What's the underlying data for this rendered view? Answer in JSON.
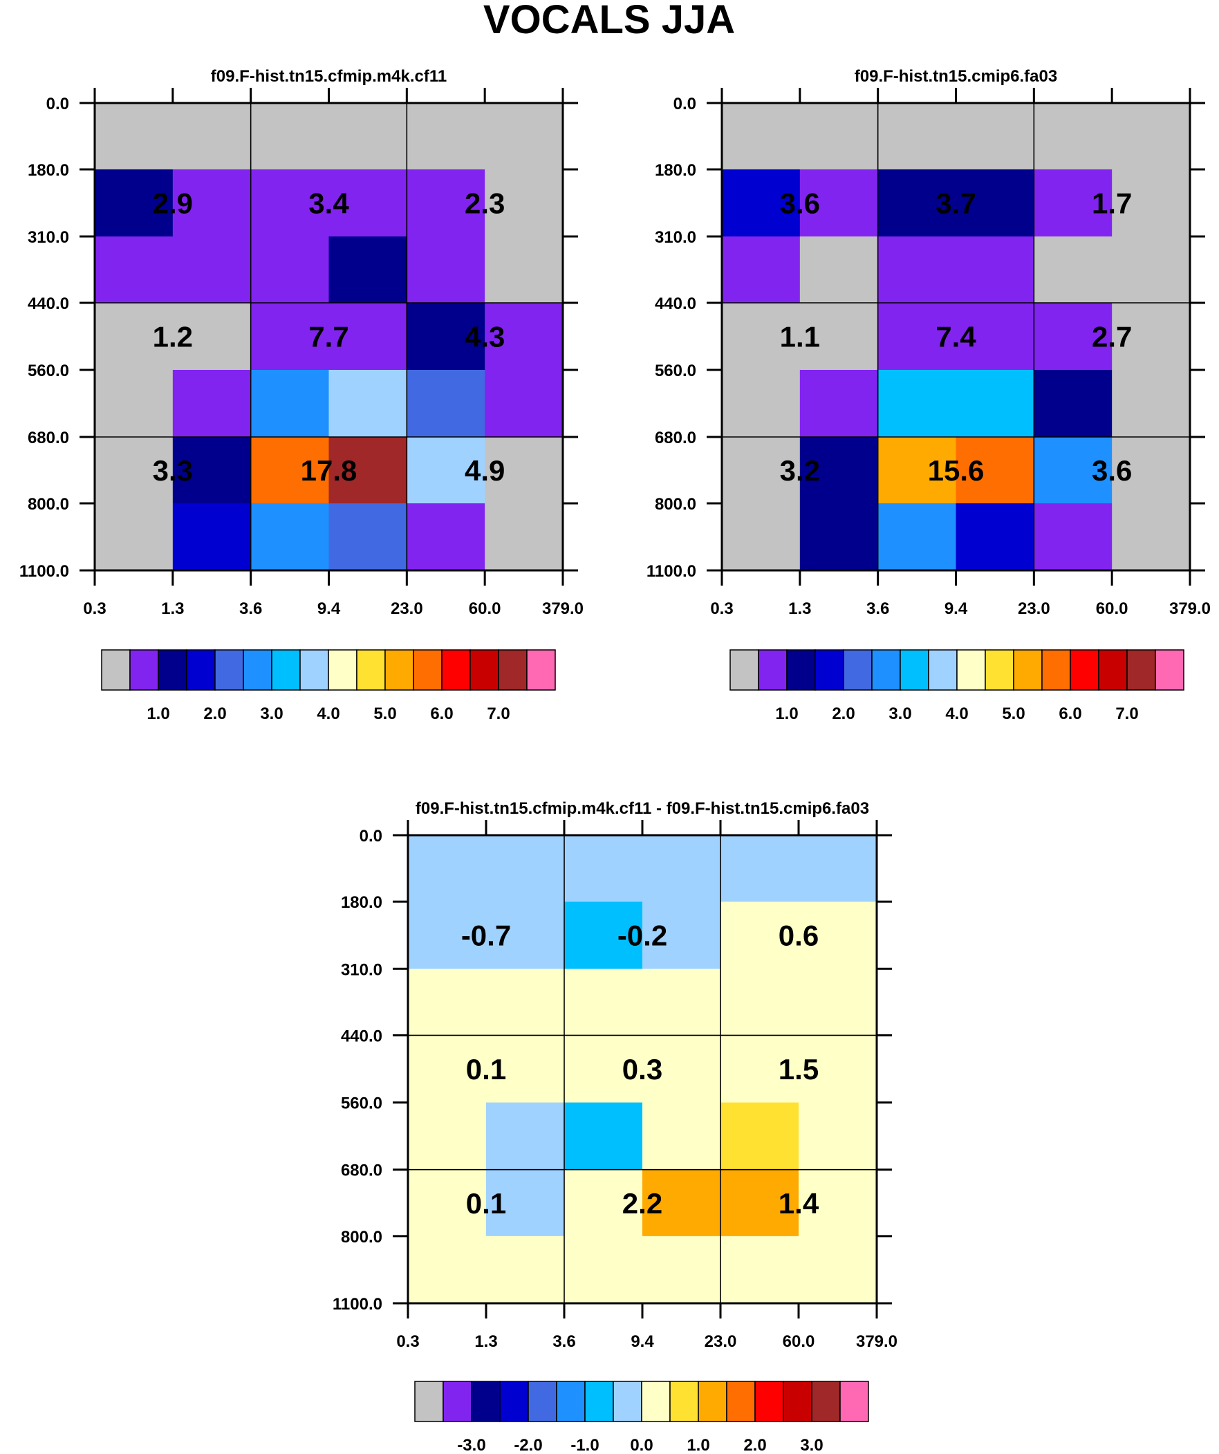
{
  "figure_title": "VOCALS JJA",
  "palette": {
    "colors": [
      "#c3c3c3",
      "#8224f0",
      "#00008c",
      "#0000d0",
      "#4169e1",
      "#1e90ff",
      "#00bfff",
      "#a0d2ff",
      "#ffffc8",
      "#ffe132",
      "#ffaa00",
      "#ff6e00",
      "#ff0000",
      "#c80000",
      "#a02828",
      "#ff69b4"
    ]
  },
  "chart_data": [
    {
      "type": "heatmap",
      "title": "f09.F-hist.tn15.cfmip.m4k.cf11",
      "x_tick_labels": [
        "0.3",
        "1.3",
        "3.6",
        "9.4",
        "23.0",
        "60.0",
        "379.0"
      ],
      "y_tick_labels": [
        "0.0",
        "180.0",
        "310.0",
        "440.0",
        "560.0",
        "680.0",
        "800.0",
        "1100.0"
      ],
      "grid_cells_color_index": [
        [
          0,
          0,
          0,
          0,
          0,
          0
        ],
        [
          2,
          1,
          1,
          1,
          1,
          0
        ],
        [
          1,
          1,
          1,
          2,
          1,
          0
        ],
        [
          0,
          0,
          1,
          1,
          2,
          1
        ],
        [
          0,
          1,
          5,
          7,
          4,
          1
        ],
        [
          0,
          2,
          11,
          14,
          7,
          0
        ],
        [
          0,
          3,
          5,
          4,
          1,
          0
        ]
      ],
      "block_values": [
        [
          "2.9",
          "3.4",
          "2.3"
        ],
        [
          "1.2",
          "7.7",
          "4.3"
        ],
        [
          "3.3",
          "17.8",
          "4.9"
        ]
      ],
      "colorbar_labels": [
        "1.0",
        "2.0",
        "3.0",
        "4.0",
        "5.0",
        "6.0",
        "7.0"
      ]
    },
    {
      "type": "heatmap",
      "title": "f09.F-hist.tn15.cmip6.fa03",
      "x_tick_labels": [
        "0.3",
        "1.3",
        "3.6",
        "9.4",
        "23.0",
        "60.0",
        "379.0"
      ],
      "y_tick_labels": [
        "0.0",
        "180.0",
        "310.0",
        "440.0",
        "560.0",
        "680.0",
        "800.0",
        "1100.0"
      ],
      "grid_cells_color_index": [
        [
          0,
          0,
          0,
          0,
          0,
          0
        ],
        [
          3,
          1,
          2,
          2,
          1,
          0
        ],
        [
          1,
          0,
          1,
          1,
          0,
          0
        ],
        [
          0,
          0,
          1,
          1,
          1,
          0
        ],
        [
          0,
          1,
          6,
          6,
          2,
          0
        ],
        [
          0,
          2,
          10,
          11,
          5,
          0
        ],
        [
          0,
          2,
          5,
          3,
          1,
          0
        ]
      ],
      "block_values": [
        [
          "3.6",
          "3.7",
          "1.7"
        ],
        [
          "1.1",
          "7.4",
          "2.7"
        ],
        [
          "3.2",
          "15.6",
          "3.6"
        ]
      ],
      "colorbar_labels": [
        "1.0",
        "2.0",
        "3.0",
        "4.0",
        "5.0",
        "6.0",
        "7.0"
      ]
    },
    {
      "type": "heatmap",
      "title": "f09.F-hist.tn15.cfmip.m4k.cf11 - f09.F-hist.tn15.cmip6.fa03",
      "x_tick_labels": [
        "0.3",
        "1.3",
        "3.6",
        "9.4",
        "23.0",
        "60.0",
        "379.0"
      ],
      "y_tick_labels": [
        "0.0",
        "180.0",
        "310.0",
        "440.0",
        "560.0",
        "680.0",
        "800.0",
        "1100.0"
      ],
      "grid_cells_color_index": [
        [
          7,
          7,
          7,
          7,
          7,
          7
        ],
        [
          7,
          7,
          6,
          7,
          8,
          8
        ],
        [
          8,
          8,
          8,
          8,
          8,
          8
        ],
        [
          8,
          8,
          8,
          8,
          8,
          8
        ],
        [
          8,
          7,
          6,
          8,
          9,
          8
        ],
        [
          8,
          7,
          8,
          10,
          10,
          8
        ],
        [
          8,
          8,
          8,
          8,
          8,
          8
        ]
      ],
      "block_values": [
        [
          "-0.7",
          "-0.2",
          "0.6"
        ],
        [
          "0.1",
          "0.3",
          "1.5"
        ],
        [
          "0.1",
          "2.2",
          "1.4"
        ]
      ],
      "colorbar_labels": [
        "-3.0",
        "-2.0",
        "-1.0",
        "0.0",
        "1.0",
        "2.0",
        "3.0"
      ]
    }
  ]
}
